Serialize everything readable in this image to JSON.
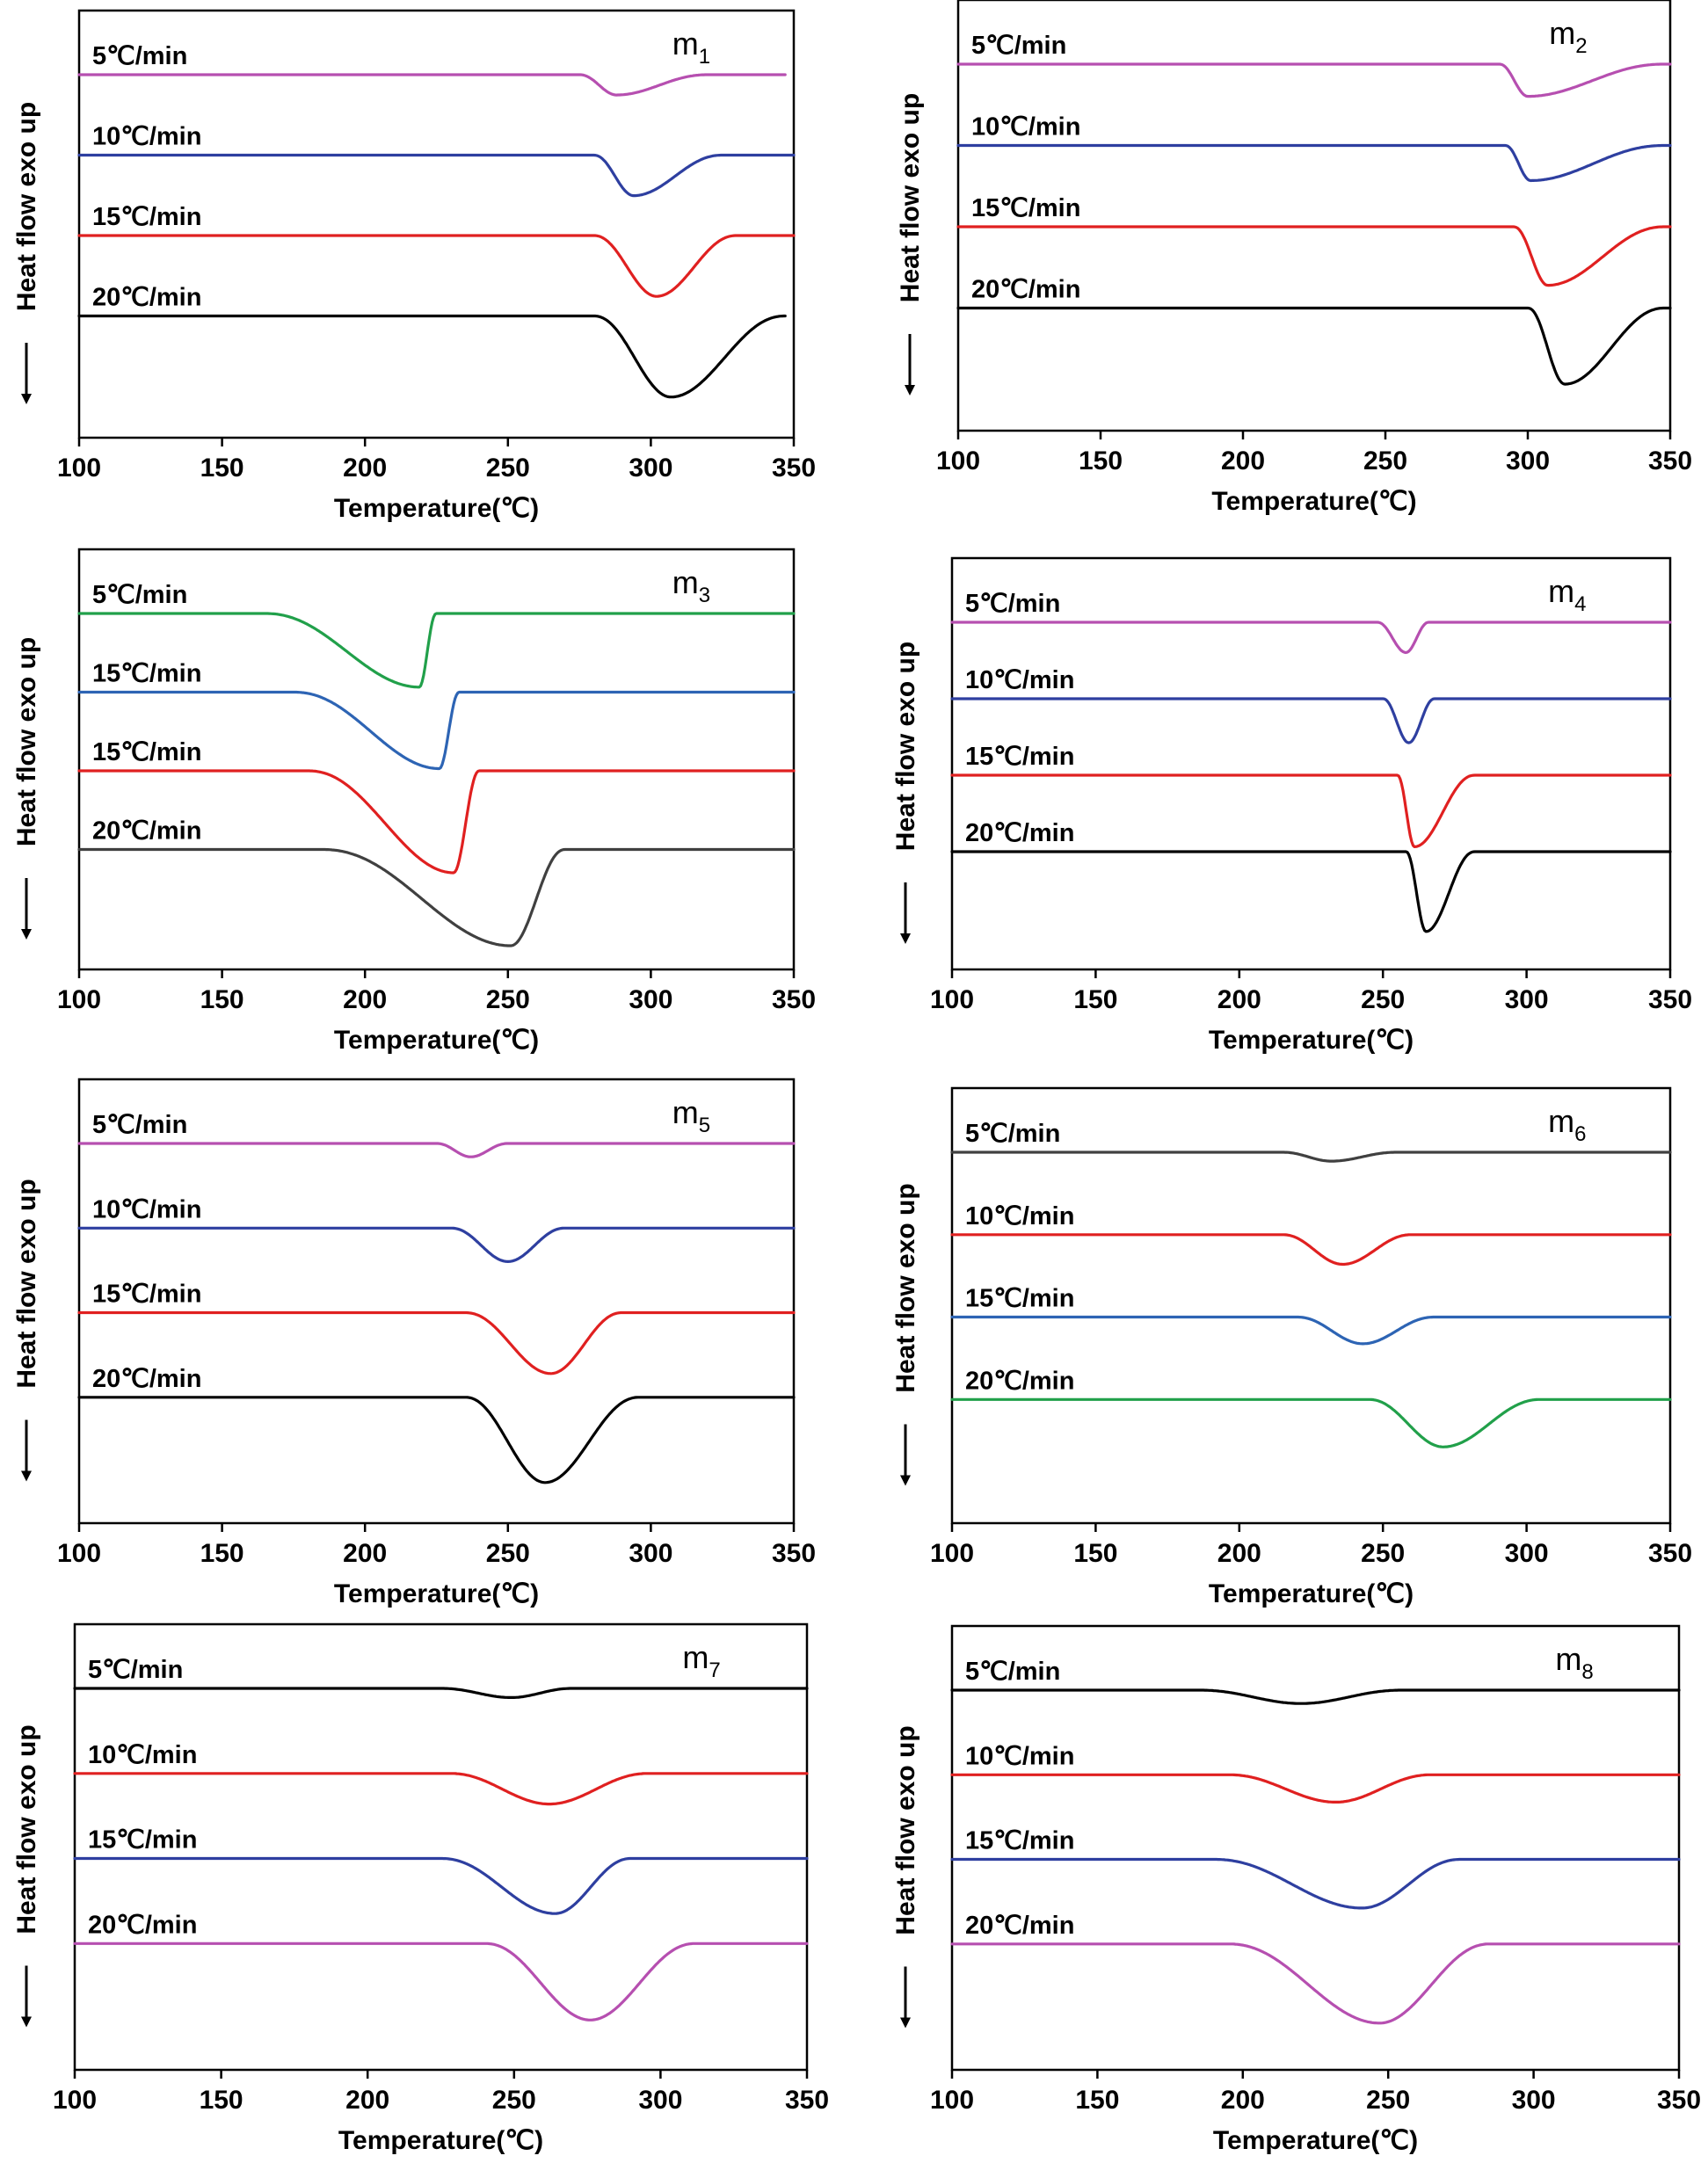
{
  "chart_data": [
    {
      "type": "line",
      "title": "m",
      "title_sub": "1",
      "xlabel": "Temperature(℃)",
      "ylabel": "Heat flow exo up",
      "xlim": [
        100,
        350
      ],
      "xticks": [
        "100",
        "150",
        "200",
        "250",
        "300",
        "350"
      ],
      "grid": false,
      "series": [
        {
          "name": "5℃/min",
          "color": "#b64fb0",
          "baseline": 0,
          "peak_x": 288,
          "depth": 0.35,
          "start_x": 275,
          "end_x": 320,
          "x_range": [
            100,
            347
          ]
        },
        {
          "name": "10℃/min",
          "color": "#2e3fa0",
          "baseline": 1,
          "peak_x": 294,
          "depth": 0.7,
          "start_x": 280,
          "end_x": 325,
          "x_range": [
            100,
            350
          ]
        },
        {
          "name": "15℃/min",
          "color": "#e02020",
          "baseline": 2,
          "peak_x": 302,
          "depth": 1.05,
          "start_x": 280,
          "end_x": 330,
          "x_range": [
            100,
            350
          ]
        },
        {
          "name": "20℃/min",
          "color": "#000000",
          "baseline": 3,
          "peak_x": 307,
          "depth": 1.4,
          "start_x": 280,
          "end_x": 347,
          "x_range": [
            100,
            347
          ]
        }
      ]
    },
    {
      "type": "line",
      "title": "m",
      "title_sub": "2",
      "xlabel": "Temperature(℃)",
      "ylabel": "Heat flow exo up",
      "xlim": [
        100,
        350
      ],
      "xticks": [
        "100",
        "150",
        "200",
        "250",
        "300",
        "350"
      ],
      "grid": false,
      "series": [
        {
          "name": "5℃/min",
          "color": "#b64fb0",
          "baseline": 0,
          "peak_x": 300,
          "depth": 0.55,
          "start_x": 290,
          "end_x": 348,
          "x_range": [
            100,
            350
          ]
        },
        {
          "name": "10℃/min",
          "color": "#2e3fa0",
          "baseline": 1,
          "peak_x": 301,
          "depth": 0.6,
          "start_x": 292,
          "end_x": 348,
          "x_range": [
            100,
            350
          ]
        },
        {
          "name": "15℃/min",
          "color": "#e02020",
          "baseline": 2,
          "peak_x": 307,
          "depth": 1.0,
          "start_x": 295,
          "end_x": 348,
          "x_range": [
            100,
            350
          ]
        },
        {
          "name": "20℃/min",
          "color": "#000000",
          "baseline": 3,
          "peak_x": 313,
          "depth": 1.3,
          "start_x": 300,
          "end_x": 348,
          "x_range": [
            100,
            350
          ]
        }
      ]
    },
    {
      "type": "line",
      "title": "m",
      "title_sub": "3",
      "xlabel": "Temperature(℃)",
      "ylabel": "Heat flow exo up",
      "xlim": [
        100,
        350
      ],
      "xticks": [
        "100",
        "150",
        "200",
        "250",
        "300",
        "350"
      ],
      "grid": false,
      "series": [
        {
          "name": "5℃/min",
          "color": "#21a04a",
          "baseline": 0,
          "peak_x": 219,
          "depth": 1.3,
          "start_x": 165,
          "end_x": 225,
          "x_range": [
            100,
            350
          ]
        },
        {
          "name": "15℃/min",
          "color": "#2d64b4",
          "baseline": 1,
          "peak_x": 226,
          "depth": 1.35,
          "start_x": 175,
          "end_x": 233,
          "x_range": [
            100,
            350
          ]
        },
        {
          "name": "15℃/min",
          "color": "#e02020",
          "baseline": 2,
          "peak_x": 231,
          "depth": 1.8,
          "start_x": 180,
          "end_x": 240,
          "x_range": [
            100,
            350
          ]
        },
        {
          "name": "20℃/min",
          "color": "#404040",
          "baseline": 3,
          "peak_x": 251,
          "depth": 1.7,
          "start_x": 185,
          "end_x": 270,
          "x_range": [
            100,
            350
          ]
        }
      ]
    },
    {
      "type": "line",
      "title": "m",
      "title_sub": "4",
      "xlabel": "Temperature(℃)",
      "ylabel": "Heat flow exo up",
      "xlim": [
        100,
        350
      ],
      "xticks": [
        "100",
        "150",
        "200",
        "250",
        "300",
        "350"
      ],
      "grid": false,
      "series": [
        {
          "name": "5℃/min",
          "color": "#b64fb0",
          "baseline": 0,
          "peak_x": 258,
          "depth": 0.55,
          "start_x": 248,
          "end_x": 266,
          "x_range": [
            100,
            350
          ]
        },
        {
          "name": "10℃/min",
          "color": "#2e3fa0",
          "baseline": 1,
          "peak_x": 259,
          "depth": 0.8,
          "start_x": 250,
          "end_x": 268,
          "x_range": [
            100,
            350
          ]
        },
        {
          "name": "15℃/min",
          "color": "#e02020",
          "baseline": 2,
          "peak_x": 261,
          "depth": 1.3,
          "start_x": 255,
          "end_x": 282,
          "x_range": [
            100,
            350
          ]
        },
        {
          "name": "20℃/min",
          "color": "#000000",
          "baseline": 3,
          "peak_x": 265,
          "depth": 1.45,
          "start_x": 258,
          "end_x": 282,
          "x_range": [
            100,
            350
          ]
        }
      ]
    },
    {
      "type": "line",
      "title": "m",
      "title_sub": "5",
      "xlabel": "Temperature(℃)",
      "ylabel": "Heat flow exo up",
      "xlim": [
        100,
        350
      ],
      "xticks": [
        "100",
        "150",
        "200",
        "250",
        "300",
        "350"
      ],
      "grid": false,
      "series": [
        {
          "name": "5℃/min",
          "color": "#b64fb0",
          "baseline": 0,
          "peak_x": 237,
          "depth": 0.22,
          "start_x": 225,
          "end_x": 250,
          "x_range": [
            100,
            350
          ]
        },
        {
          "name": "10℃/min",
          "color": "#2e3fa0",
          "baseline": 1,
          "peak_x": 250,
          "depth": 0.55,
          "start_x": 230,
          "end_x": 270,
          "x_range": [
            100,
            350
          ]
        },
        {
          "name": "15℃/min",
          "color": "#e02020",
          "baseline": 2,
          "peak_x": 265,
          "depth": 1.0,
          "start_x": 235,
          "end_x": 290,
          "x_range": [
            100,
            350
          ]
        },
        {
          "name": "20℃/min",
          "color": "#000000",
          "baseline": 3,
          "peak_x": 263,
          "depth": 1.4,
          "start_x": 235,
          "end_x": 296,
          "x_range": [
            100,
            350
          ]
        }
      ]
    },
    {
      "type": "line",
      "title": "m",
      "title_sub": "6",
      "xlabel": "Temperature(℃)",
      "ylabel": "Heat flow exo up",
      "xlim": [
        100,
        350
      ],
      "xticks": [
        "100",
        "150",
        "200",
        "250",
        "300",
        "350"
      ],
      "grid": false,
      "series": [
        {
          "name": "5℃/min",
          "color": "#404040",
          "baseline": 0,
          "peak_x": 232,
          "depth": 0.15,
          "start_x": 215,
          "end_x": 255,
          "x_range": [
            100,
            350
          ]
        },
        {
          "name": "10℃/min",
          "color": "#e02020",
          "baseline": 1,
          "peak_x": 236,
          "depth": 0.5,
          "start_x": 215,
          "end_x": 260,
          "x_range": [
            100,
            350
          ]
        },
        {
          "name": "15℃/min",
          "color": "#2d64b4",
          "baseline": 2,
          "peak_x": 243,
          "depth": 0.45,
          "start_x": 220,
          "end_x": 268,
          "x_range": [
            100,
            350
          ]
        },
        {
          "name": "20℃/min",
          "color": "#21a04a",
          "baseline": 3,
          "peak_x": 271,
          "depth": 0.8,
          "start_x": 245,
          "end_x": 305,
          "x_range": [
            100,
            350
          ]
        }
      ]
    },
    {
      "type": "line",
      "title": "m",
      "title_sub": "7",
      "xlabel": "Temperature(℃)",
      "ylabel": "Heat flow exo up",
      "xlim": [
        100,
        350
      ],
      "xticks": [
        "100",
        "150",
        "200",
        "250",
        "300",
        "350"
      ],
      "grid": false,
      "series": [
        {
          "name": "5℃/min",
          "color": "#000000",
          "baseline": 0,
          "peak_x": 249,
          "depth": 0.15,
          "start_x": 225,
          "end_x": 270,
          "x_range": [
            100,
            350
          ]
        },
        {
          "name": "10℃/min",
          "color": "#e02020",
          "baseline": 1,
          "peak_x": 262,
          "depth": 0.5,
          "start_x": 228,
          "end_x": 296,
          "x_range": [
            100,
            350
          ]
        },
        {
          "name": "15℃/min",
          "color": "#2e3fa0",
          "baseline": 2,
          "peak_x": 264,
          "depth": 0.9,
          "start_x": 225,
          "end_x": 290,
          "x_range": [
            100,
            350
          ]
        },
        {
          "name": "20℃/min",
          "color": "#b64fb0",
          "baseline": 3,
          "peak_x": 276,
          "depth": 1.25,
          "start_x": 240,
          "end_x": 312,
          "x_range": [
            100,
            350
          ]
        }
      ]
    },
    {
      "type": "line",
      "title": "m",
      "title_sub": "8",
      "xlabel": "Temperature(℃)",
      "ylabel": "Heat flow exo up",
      "xlim": [
        100,
        350
      ],
      "xticks": [
        "100",
        "150",
        "200",
        "250",
        "300",
        "350"
      ],
      "grid": false,
      "series": [
        {
          "name": "5℃/min",
          "color": "#000000",
          "baseline": 0,
          "peak_x": 220,
          "depth": 0.22,
          "start_x": 185,
          "end_x": 255,
          "x_range": [
            100,
            350
          ]
        },
        {
          "name": "10℃/min",
          "color": "#e02020",
          "baseline": 1,
          "peak_x": 232,
          "depth": 0.45,
          "start_x": 195,
          "end_x": 265,
          "x_range": [
            100,
            350
          ]
        },
        {
          "name": "15℃/min",
          "color": "#2e3fa0",
          "baseline": 2,
          "peak_x": 241,
          "depth": 0.8,
          "start_x": 190,
          "end_x": 275,
          "x_range": [
            100,
            350
          ]
        },
        {
          "name": "20℃/min",
          "color": "#b64fb0",
          "baseline": 3,
          "peak_x": 247,
          "depth": 1.3,
          "start_x": 195,
          "end_x": 285,
          "x_range": [
            100,
            350
          ]
        }
      ]
    }
  ]
}
